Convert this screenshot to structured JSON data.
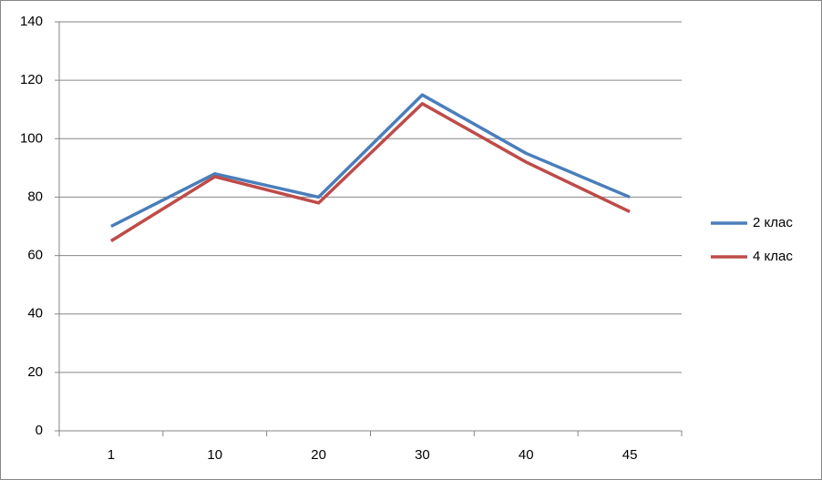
{
  "chart_data": {
    "type": "line",
    "categories": [
      "1",
      "10",
      "20",
      "30",
      "40",
      "45"
    ],
    "series": [
      {
        "name": "2 клас",
        "color": "#4a7ebb",
        "values": [
          70,
          88,
          80,
          115,
          95,
          80
        ]
      },
      {
        "name": "4 клас",
        "color": "#be4b48",
        "values": [
          65,
          87,
          78,
          112,
          92,
          75
        ]
      }
    ],
    "ylim": [
      0,
      140
    ],
    "yticks": [
      0,
      20,
      40,
      60,
      80,
      100,
      120,
      140
    ],
    "grid": true,
    "legend": "right"
  }
}
